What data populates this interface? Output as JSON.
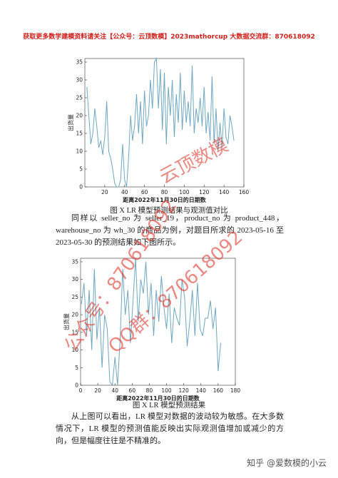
{
  "header": "获取更多数学建模资料请关注【公众号：云顶数模】2023mathorcup 大数据交流群：870618092",
  "chart_data": [
    {
      "type": "line",
      "xlabel": "距离2022年11月30日的日期数",
      "ylabel": "出货量",
      "color": "#6fa8c0",
      "xlim": [
        0,
        160
      ],
      "xticks": [
        20,
        40,
        60,
        80,
        100,
        120,
        140,
        160
      ],
      "ylim": [
        0,
        36
      ],
      "yticks": [
        0,
        5,
        10,
        15,
        20,
        25,
        30,
        35
      ],
      "x": [
        2,
        4,
        6,
        8,
        10,
        12,
        14,
        16,
        18,
        20,
        22,
        24,
        26,
        28,
        30,
        32,
        34,
        36,
        38,
        40,
        42,
        44,
        46,
        48,
        50,
        52,
        54,
        56,
        58,
        60,
        62,
        64,
        66,
        68,
        70,
        72,
        74,
        76,
        78,
        80,
        82,
        84,
        86,
        88,
        90,
        92,
        94,
        96,
        98,
        100,
        102,
        104,
        106,
        108,
        110,
        112,
        114,
        116,
        118,
        120,
        122,
        124,
        126,
        128,
        130,
        132,
        134,
        136,
        138,
        140,
        142,
        144,
        146,
        148,
        150
      ],
      "values": [
        28,
        20,
        12,
        15,
        22,
        17,
        11,
        13,
        9,
        14,
        24,
        10,
        8,
        5,
        1,
        0,
        0,
        2,
        12,
        2,
        0,
        8,
        20,
        13,
        17,
        26,
        15,
        24,
        12,
        27,
        17,
        20,
        30,
        22,
        35,
        36,
        22,
        33,
        16,
        32,
        12,
        28,
        20,
        30,
        14,
        26,
        18,
        32,
        16,
        27,
        18,
        24,
        17,
        34,
        15,
        22,
        18,
        25,
        17,
        28,
        15,
        21,
        13,
        31,
        12,
        22,
        10,
        18,
        11,
        22,
        14,
        12,
        20,
        17,
        13
      ]
    },
    {
      "type": "line",
      "xlabel": "距离2022年11月30日的日期数",
      "ylabel": "出货量",
      "color": "#6fa8c0",
      "xlim": [
        0,
        180
      ],
      "xticks": [
        0,
        20,
        40,
        60,
        80,
        100,
        120,
        140,
        160,
        180
      ],
      "ylim": [
        0,
        36
      ],
      "yticks": [
        0,
        5,
        10,
        15,
        20,
        25,
        30,
        35
      ],
      "x": [
        1,
        4,
        7,
        10,
        13,
        16,
        19,
        22,
        25,
        28,
        31,
        34,
        37,
        40,
        43,
        46,
        49,
        52,
        55,
        58,
        61,
        64,
        67,
        70,
        73,
        76,
        79,
        82,
        85,
        88,
        91,
        94,
        97,
        100,
        103,
        106,
        109,
        112,
        115,
        118,
        121,
        124,
        127,
        130,
        133,
        136,
        139,
        142,
        145,
        148,
        151,
        154,
        157,
        160,
        163
      ],
      "values": [
        23,
        29,
        14,
        27,
        10,
        33,
        13,
        22,
        5,
        20,
        16,
        1,
        0,
        8,
        0,
        13,
        33,
        20,
        27,
        12,
        24,
        36,
        18,
        30,
        26,
        35,
        20,
        29,
        14,
        27,
        18,
        31,
        22,
        16,
        26,
        12,
        22,
        19,
        17,
        30,
        25,
        11,
        18,
        27,
        14,
        29,
        16,
        14,
        19,
        19,
        24,
        16,
        22,
        4,
        12
      ]
    }
  ],
  "captions": [
    "图 X LR 模型预测结果与观测值对比",
    "图 X LR 模型预测结果"
  ],
  "paragraphs": [
    "同样以 seller_no 为 seller_19，product_no 为 product_448，warehouse_no 为 wh_30 的商品为例，对题目所求的 2023-05-16 至 2023-05-30 的预测结果如下图所示。",
    "从上图可以看出，LR 模型对数据的波动较为敏感。在大多数情况下，LR 模型的预测值能反映出实际观测值增加或减少的方向，但是幅度往往是不精准的。"
  ],
  "watermarks": [
    "云顶数模",
    "公众号：870618092",
    "QQ群：870618092"
  ],
  "footer": "知乎 @爱数模的小云"
}
